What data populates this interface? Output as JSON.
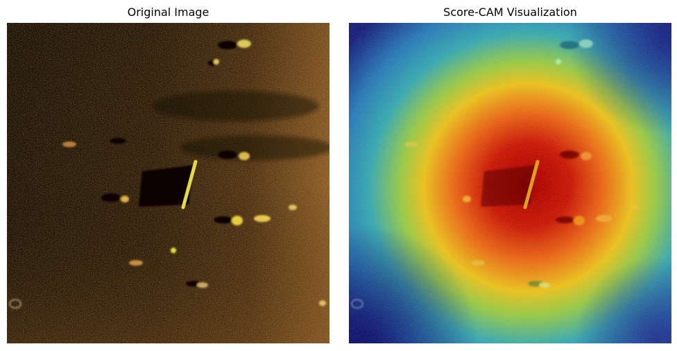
{
  "panels": [
    {
      "title": "Original Image"
    },
    {
      "title": "Score-CAM Visualization"
    }
  ],
  "colors": {
    "sonar_dark": "#1c1106",
    "sonar_mid": "#6b4418",
    "sonar_bright": "#c98a3a",
    "target_yellow": "#e8e04a",
    "heat_red": "#b80000",
    "heat_yellow": "#e8d81a",
    "heat_cyan": "#2fa8b8",
    "heat_blue": "#1a1a8a"
  }
}
